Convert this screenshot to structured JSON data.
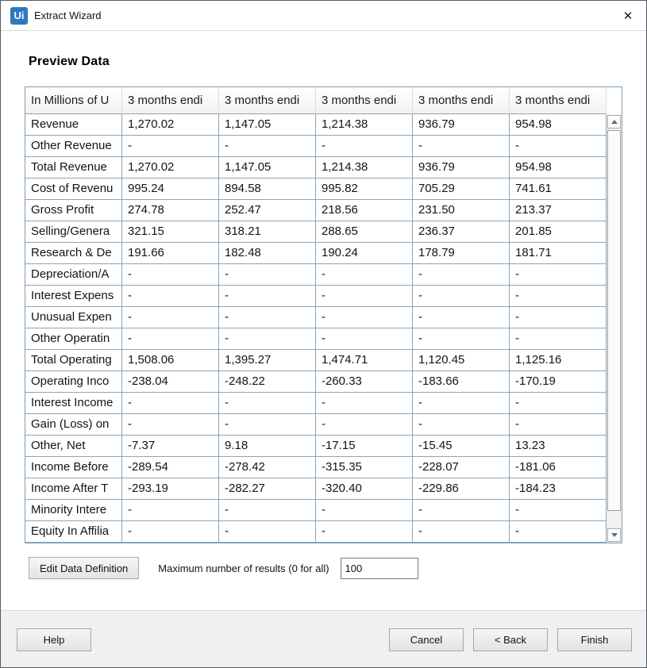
{
  "window": {
    "logo_text": "Ui",
    "title": "Extract Wizard",
    "close_glyph": "✕"
  },
  "heading": "Preview Data",
  "table": {
    "columns": [
      "In Millions of U",
      "3 months endi",
      "3 months endi",
      "3 months endi",
      "3 months endi",
      "3 months endi"
    ],
    "rows": [
      {
        "label": "Revenue",
        "values": [
          "1,270.02",
          "1,147.05",
          "1,214.38",
          "936.79",
          "954.98"
        ]
      },
      {
        "label": "Other Revenue",
        "values": [
          "-",
          "-",
          "-",
          "-",
          "-"
        ]
      },
      {
        "label": "Total Revenue",
        "values": [
          "1,270.02",
          "1,147.05",
          "1,214.38",
          "936.79",
          "954.98"
        ]
      },
      {
        "label": "Cost of Revenu",
        "values": [
          "995.24",
          "894.58",
          "995.82",
          "705.29",
          "741.61"
        ]
      },
      {
        "label": "Gross Profit",
        "values": [
          "274.78",
          "252.47",
          "218.56",
          "231.50",
          "213.37"
        ]
      },
      {
        "label": "Selling/Genera",
        "values": [
          "321.15",
          "318.21",
          "288.65",
          "236.37",
          "201.85"
        ]
      },
      {
        "label": "Research & De",
        "values": [
          "191.66",
          "182.48",
          "190.24",
          "178.79",
          "181.71"
        ]
      },
      {
        "label": "Depreciation/A",
        "values": [
          "-",
          "-",
          "-",
          "-",
          "-"
        ]
      },
      {
        "label": "Interest Expens",
        "values": [
          "-",
          "-",
          "-",
          "-",
          "-"
        ]
      },
      {
        "label": "Unusual Expen",
        "values": [
          "-",
          "-",
          "-",
          "-",
          "-"
        ]
      },
      {
        "label": "Other Operatin",
        "values": [
          "-",
          "-",
          "-",
          "-",
          "-"
        ]
      },
      {
        "label": "Total Operating",
        "values": [
          "1,508.06",
          "1,395.27",
          "1,474.71",
          "1,120.45",
          "1,125.16"
        ]
      },
      {
        "label": "Operating Inco",
        "values": [
          "-238.04",
          "-248.22",
          "-260.33",
          "-183.66",
          "-170.19"
        ]
      },
      {
        "label": "Interest Income",
        "values": [
          "-",
          "-",
          "-",
          "-",
          "-"
        ]
      },
      {
        "label": "Gain (Loss) on",
        "values": [
          "-",
          "-",
          "-",
          "-",
          "-"
        ]
      },
      {
        "label": "Other, Net",
        "values": [
          "-7.37",
          "9.18",
          "-17.15",
          "-15.45",
          "13.23"
        ]
      },
      {
        "label": "Income Before",
        "values": [
          "-289.54",
          "-278.42",
          "-315.35",
          "-228.07",
          "-181.06"
        ]
      },
      {
        "label": "Income After T",
        "values": [
          "-293.19",
          "-282.27",
          "-320.40",
          "-229.86",
          "-184.23"
        ]
      },
      {
        "label": "Minority Intere",
        "values": [
          "-",
          "-",
          "-",
          "-",
          "-"
        ]
      },
      {
        "label": "Equity In Affilia",
        "values": [
          "-",
          "-",
          "-",
          "-",
          "-"
        ]
      }
    ]
  },
  "controls": {
    "edit_button_label": "Edit Data Definition",
    "max_results_label": "Maximum number of results (0 for all)",
    "max_results_value": "100"
  },
  "footer": {
    "help_label": "Help",
    "cancel_label": "Cancel",
    "back_label": "< Back",
    "finish_label": "Finish"
  },
  "colors": {
    "logo_blue": "#2979c0",
    "cell_border_blue": "#8ba5c0",
    "table_outer_border": "#7f9db9",
    "footer_bg": "#f0f0f0",
    "button_border": "#a6a6a6"
  }
}
